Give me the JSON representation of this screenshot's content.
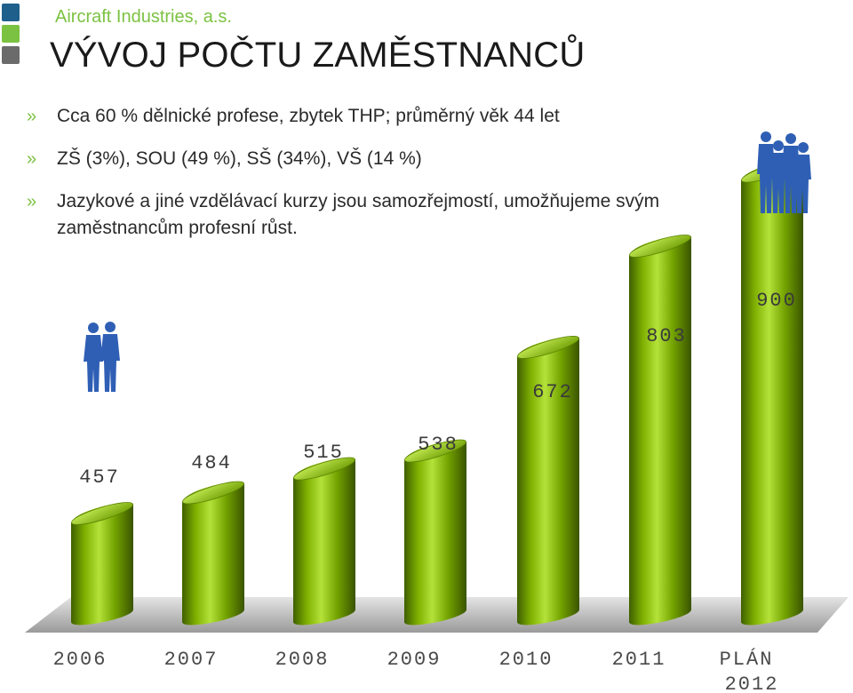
{
  "company": "Aircraft Industries, a.s.",
  "title": "VÝVOJ POČTU ZAMĚSTNANCŮ",
  "bullet_marker": "»",
  "bullets": [
    "Cca 60 % dělnické profese, zbytek THP; průměrný věk 44 let",
    "ZŠ (3%), SOU (49 %), SŠ (34%), VŠ (14 %)",
    "Jazykové a jiné vzdělávací kurzy jsou samozřejmostí, umožňujeme svým zaměstnancům profesní růst."
  ],
  "colors": {
    "accent_green": "#7cc242",
    "bar_green": "#7fb000",
    "bar_dark": "#3d5a00",
    "square_blue": "#1f5f8b",
    "square_gray": "#6b6b6b",
    "people_blue": "#2f5fb5"
  },
  "icons": [
    "people-small-icon",
    "people-large-icon"
  ],
  "chart_data": {
    "type": "bar",
    "categories": [
      "2006",
      "2007",
      "2008",
      "2009",
      "2010",
      "2011",
      "PLÁN 2012"
    ],
    "values": [
      457,
      484,
      515,
      538,
      672,
      803,
      900
    ],
    "data_labels": [
      "457",
      "484",
      "515",
      "538",
      "672",
      "803",
      "900"
    ],
    "title": "VÝVOJ POČTU ZAMĚSTNANCŮ",
    "xlabel": "",
    "ylabel": "",
    "legend": "none",
    "grid": false
  }
}
